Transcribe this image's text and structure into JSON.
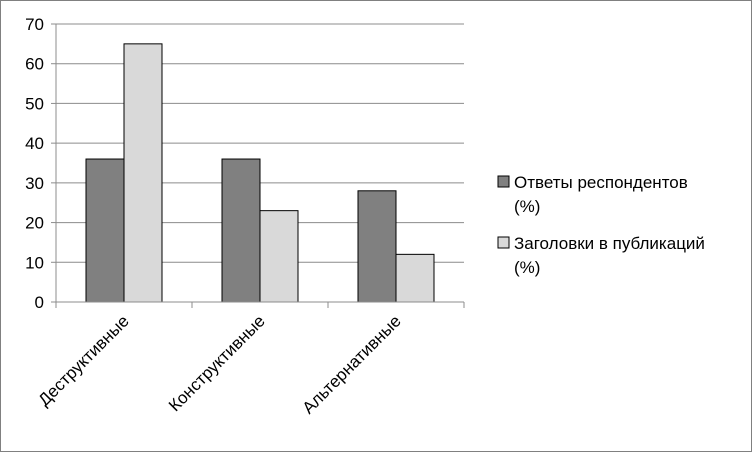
{
  "chart_data": {
    "type": "bar",
    "title": "",
    "xlabel": "",
    "ylabel": "",
    "categories": [
      "Деструктивные",
      "Конструктивные",
      "Альтернативные"
    ],
    "series": [
      {
        "name": "Ответы респондентов (%)",
        "values": [
          36,
          36,
          28
        ],
        "color": "#808080"
      },
      {
        "name": "Заголовки в публикаций (%)",
        "values": [
          65,
          23,
          12
        ],
        "color": "#d9d9d9"
      }
    ],
    "ylim": [
      0,
      70
    ],
    "yticks": [
      0,
      10,
      20,
      30,
      40,
      50,
      60,
      70
    ],
    "grid": true,
    "legend_position": "right"
  }
}
